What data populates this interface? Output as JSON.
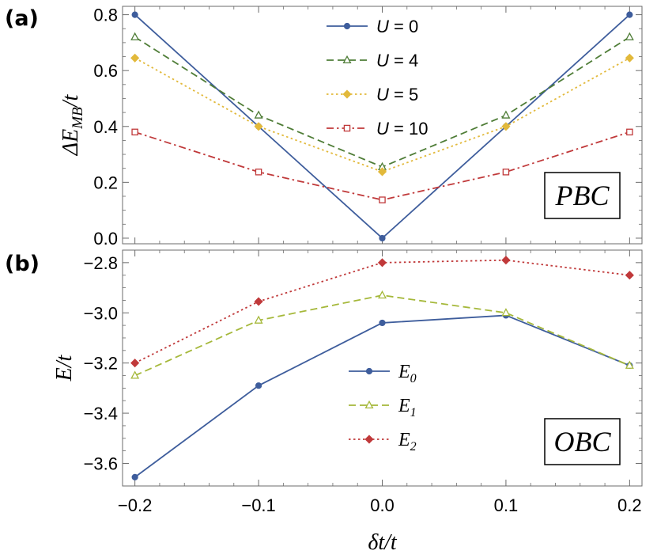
{
  "chart_data": [
    {
      "panel_label": "(a)",
      "type": "line",
      "xlabel": "",
      "ylabel": "ΔE_MB/t",
      "ylabel_parts": {
        "main": "ΔE",
        "sub": "MB",
        "tail": "/t"
      },
      "x": [
        -0.2,
        -0.1,
        0.0,
        0.1,
        0.2
      ],
      "xlim": [
        -0.21,
        0.21
      ],
      "ylim": [
        -0.02,
        0.83
      ],
      "yticks": [
        0.0,
        0.2,
        0.4,
        0.6,
        0.8
      ],
      "ytick_labels": [
        "0.0",
        "0.2",
        "0.4",
        "0.6",
        "0.8"
      ],
      "box_label": "PBC",
      "legend_position": "top-center",
      "series": [
        {
          "name": "U = 0",
          "name_var": "U",
          "name_rest": " = 0",
          "values": [
            0.8,
            0.4,
            0.0,
            0.4,
            0.8
          ],
          "color": "#3e5d9c",
          "marker": "circle",
          "dash": "solid"
        },
        {
          "name": "U = 4",
          "name_var": "U",
          "name_rest": " = 4",
          "values": [
            0.72,
            0.44,
            0.255,
            0.44,
            0.72
          ],
          "color": "#4f7d37",
          "marker": "triangle-open",
          "dash": "dashed"
        },
        {
          "name": "U = 5",
          "name_var": "U",
          "name_rest": " = 5",
          "values": [
            0.645,
            0.4,
            0.238,
            0.4,
            0.645
          ],
          "color": "#e2b93b",
          "marker": "diamond",
          "dash": "dotted"
        },
        {
          "name": "U = 10",
          "name_var": "U",
          "name_rest": " = 10",
          "values": [
            0.38,
            0.237,
            0.137,
            0.237,
            0.38
          ],
          "color": "#c0393a",
          "marker": "square-open",
          "dash": "dashdot"
        }
      ]
    },
    {
      "panel_label": "(b)",
      "type": "line",
      "xlabel": "δt/t",
      "ylabel": "E/t",
      "x": [
        -0.2,
        -0.1,
        0.0,
        0.1,
        0.2
      ],
      "xticks": [
        -0.2,
        -0.1,
        0.0,
        0.1,
        0.2
      ],
      "xtick_labels": [
        "−0.2",
        "−0.1",
        "0.0",
        "0.1",
        "0.2"
      ],
      "xlim": [
        -0.21,
        0.21
      ],
      "ylim": [
        -3.69,
        -2.75
      ],
      "yticks": [
        -3.6,
        -3.4,
        -3.2,
        -3.0,
        -2.8
      ],
      "ytick_labels": [
        "−3.6",
        "−3.4",
        "−3.2",
        "−3.0",
        "−2.8"
      ],
      "box_label": "OBC",
      "legend_position": "bottom-center",
      "series": [
        {
          "name": "E0",
          "name_var": "E",
          "name_sub": "0",
          "values": [
            -3.655,
            -3.29,
            -3.04,
            -3.01,
            -3.21
          ],
          "color": "#3e5d9c",
          "marker": "circle",
          "dash": "solid"
        },
        {
          "name": "E1",
          "name_var": "E",
          "name_sub": "1",
          "values": [
            -3.25,
            -3.03,
            -2.93,
            -3.0,
            -3.21
          ],
          "color": "#a5b83a",
          "marker": "triangle-open",
          "dash": "dashed"
        },
        {
          "name": "E2",
          "name_var": "E",
          "name_sub": "2",
          "values": [
            -3.2,
            -2.955,
            -2.8,
            -2.79,
            -2.85
          ],
          "color": "#c0393a",
          "marker": "diamond",
          "dash": "dotted"
        }
      ]
    }
  ]
}
